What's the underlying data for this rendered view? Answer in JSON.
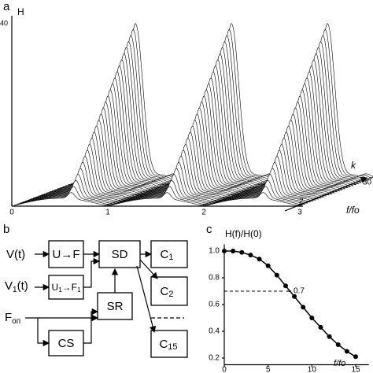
{
  "panel_a": {
    "label": "a",
    "y_axis_label": "H",
    "y_tick": 40,
    "x_ticks": [
      0,
      1,
      2,
      3
    ],
    "x_axis_label": "f/fo",
    "k_label": "k",
    "k_ticks": [
      2,
      30
    ]
  },
  "panel_b": {
    "label": "b",
    "inputs": [
      {
        "main": "V",
        "sub": "",
        "rest": "(t)"
      },
      {
        "main": "V",
        "sub": "1",
        "rest": "(t)"
      },
      {
        "main": "F",
        "sub": "оп",
        "rest": ""
      }
    ],
    "blocks": {
      "uf": {
        "main": "U→F",
        "sub": ""
      },
      "uf1": {
        "main": "U",
        "sub": "1",
        "tail": "→F",
        "sub2": "1"
      },
      "sd": "SD",
      "sr": "SR",
      "cs": "CS",
      "c1": {
        "main": "C",
        "sub": "1"
      },
      "c2": {
        "main": "C",
        "sub": "2"
      },
      "c15": {
        "main": "C",
        "sub": "15"
      }
    }
  },
  "chart_data": {
    "type": "line",
    "label": "c",
    "title": "H(f)/H(0)",
    "x_axis_label": "f/fo",
    "x": [
      0,
      1,
      2,
      3,
      4,
      5,
      6,
      7,
      8,
      9,
      10,
      11,
      12,
      13,
      14,
      15
    ],
    "values": [
      1.0,
      1.0,
      0.99,
      0.97,
      0.94,
      0.89,
      0.82,
      0.74,
      0.66,
      0.58,
      0.5,
      0.43,
      0.36,
      0.3,
      0.25,
      0.21
    ],
    "color": "#000000",
    "xlim": [
      0,
      16.5
    ],
    "ylim": [
      0.15,
      1.05
    ],
    "xticks": [
      0,
      5,
      10,
      15
    ],
    "yticks": [
      {
        "value": 0.2,
        "label": "0.2"
      },
      {
        "value": 0.4,
        "label": "0.4"
      },
      {
        "value": 0.6,
        "label": "0.6"
      },
      {
        "value": 0.8,
        "label": "0.8"
      },
      {
        "value": 1.0,
        "label": "1.0"
      }
    ],
    "reference_line": 0.7
  }
}
